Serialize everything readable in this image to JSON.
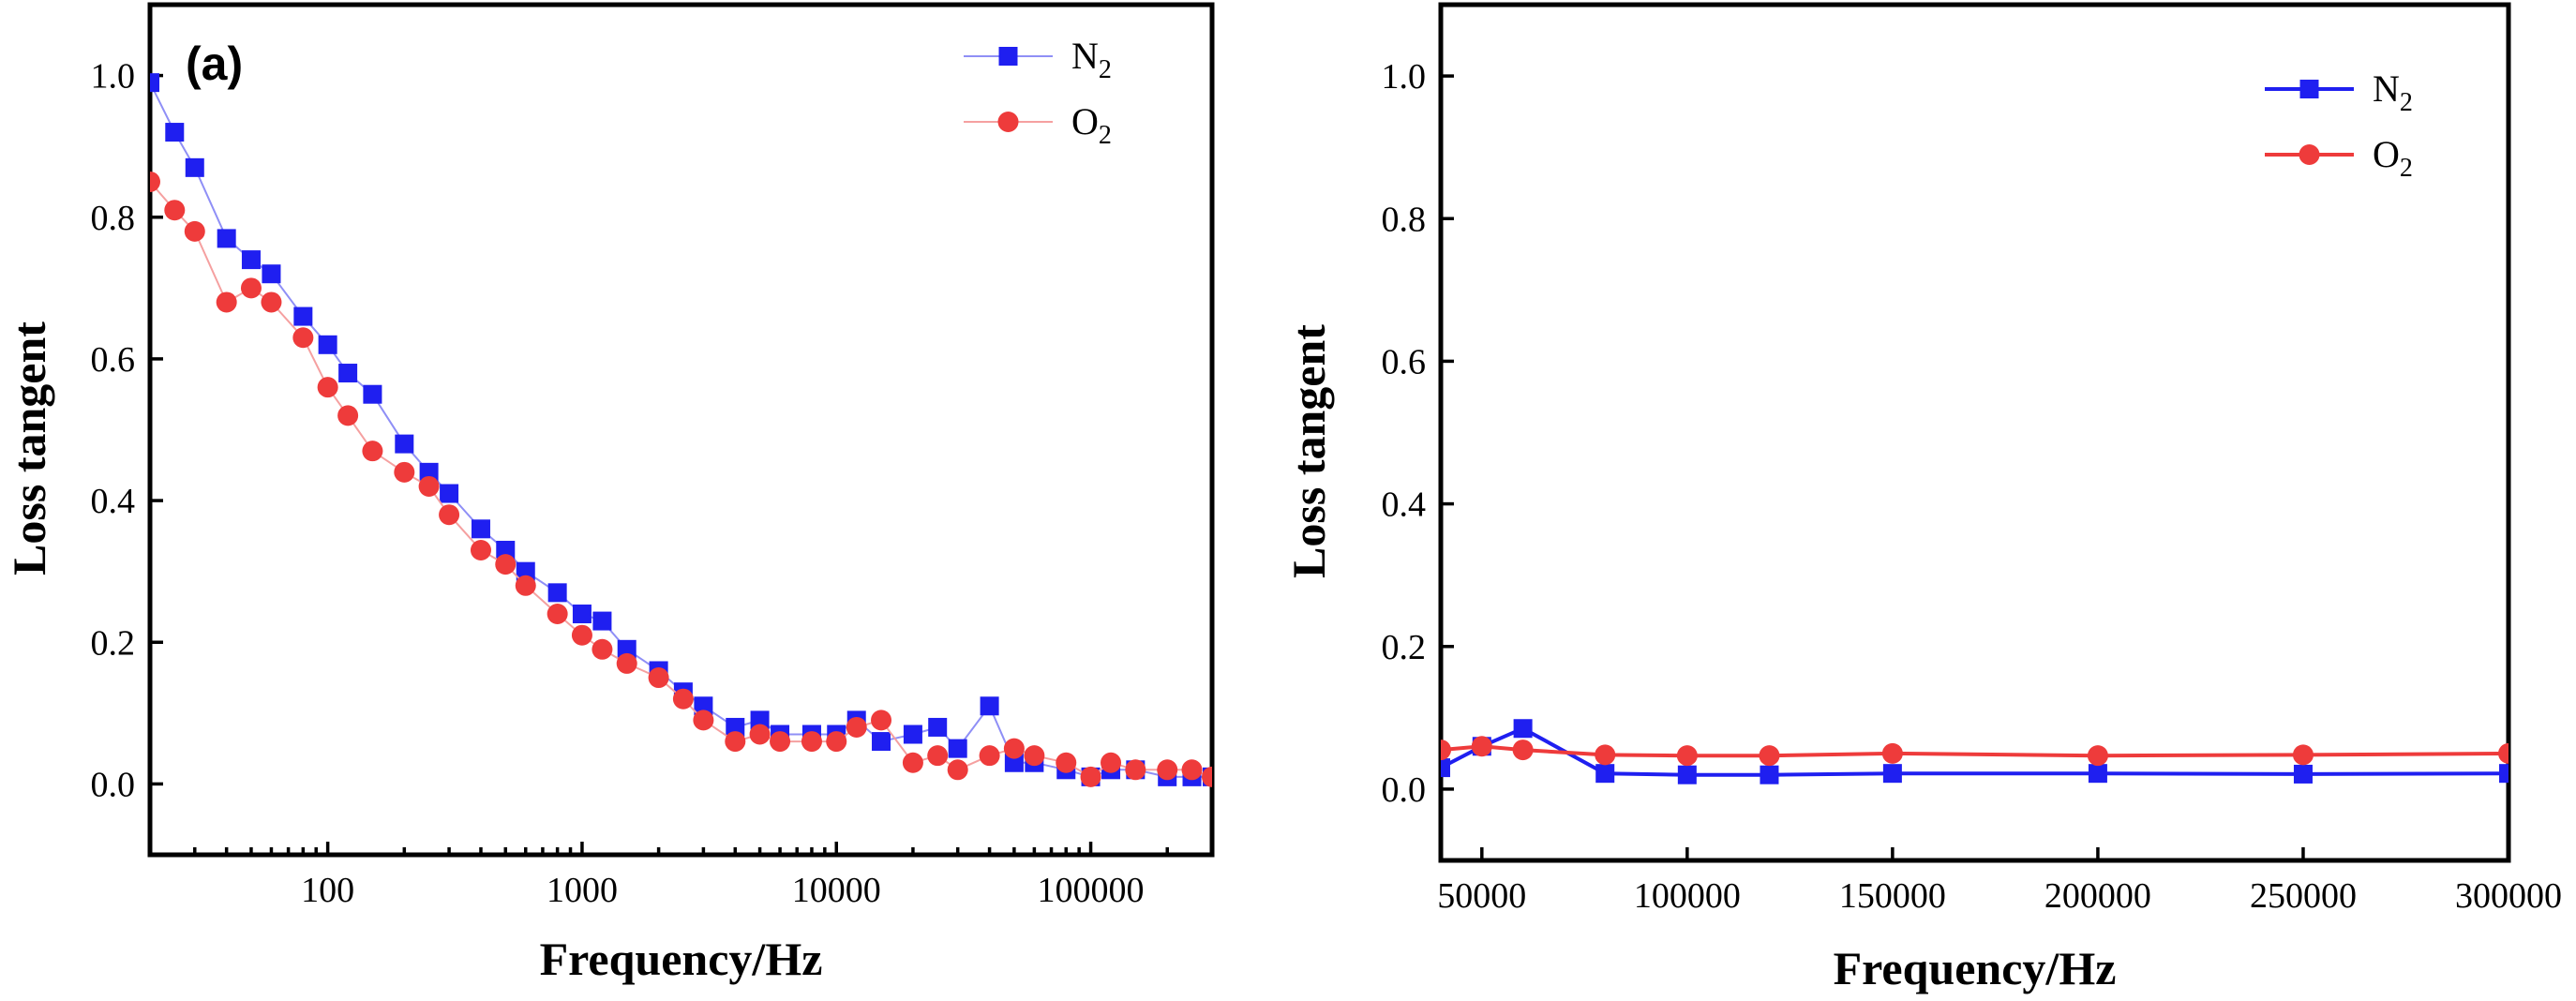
{
  "colors": {
    "n2": "#1f1ff0",
    "o2": "#ee3b3b",
    "n2_line_a": "#8f8ff6",
    "o2_line_a": "#f5a0a0"
  },
  "chart_data": [
    {
      "type": "line",
      "panel_label": "(a)",
      "xlabel": "Frequency/Hz",
      "ylabel": "Loss tangent",
      "xscale": "log",
      "xlim": [
        20,
        300000
      ],
      "ylim": [
        -0.1,
        1.1
      ],
      "x_ticks": [
        100,
        1000,
        10000,
        100000
      ],
      "x_tick_labels": [
        "100",
        "1000",
        "10000",
        "100000"
      ],
      "y_ticks": [
        0.0,
        0.2,
        0.4,
        0.6,
        0.8,
        1.0
      ],
      "y_tick_labels": [
        "0.0",
        "0.2",
        "0.4",
        "0.6",
        "0.8",
        "1.0"
      ],
      "grid": false,
      "legend_position": "top-right",
      "series": [
        {
          "name": "N2",
          "name_main": "N",
          "name_sub": "2",
          "marker": "square",
          "x": [
            20,
            25,
            30,
            40,
            50,
            60,
            80,
            100,
            120,
            150,
            200,
            250,
            300,
            400,
            500,
            600,
            800,
            1000,
            1200,
            1500,
            2000,
            2500,
            3000,
            4000,
            5000,
            6000,
            8000,
            10000,
            12000,
            15000,
            20000,
            25000,
            30000,
            40000,
            50000,
            60000,
            80000,
            100000,
            120000,
            150000,
            200000,
            250000,
            300000
          ],
          "y": [
            0.99,
            0.92,
            0.87,
            0.77,
            0.74,
            0.72,
            0.66,
            0.62,
            0.58,
            0.55,
            0.48,
            0.44,
            0.41,
            0.36,
            0.33,
            0.3,
            0.27,
            0.24,
            0.23,
            0.19,
            0.16,
            0.13,
            0.11,
            0.08,
            0.09,
            0.07,
            0.07,
            0.07,
            0.09,
            0.06,
            0.07,
            0.08,
            0.05,
            0.11,
            0.03,
            0.03,
            0.02,
            0.01,
            0.02,
            0.02,
            0.01,
            0.01,
            0.01
          ]
        },
        {
          "name": "O2",
          "name_main": "O",
          "name_sub": "2",
          "marker": "circle",
          "x": [
            20,
            25,
            30,
            40,
            50,
            60,
            80,
            100,
            120,
            150,
            200,
            250,
            300,
            400,
            500,
            600,
            800,
            1000,
            1200,
            1500,
            2000,
            2500,
            3000,
            4000,
            5000,
            6000,
            8000,
            10000,
            12000,
            15000,
            20000,
            25000,
            30000,
            40000,
            50000,
            60000,
            80000,
            100000,
            120000,
            150000,
            200000,
            250000,
            300000
          ],
          "y": [
            0.85,
            0.81,
            0.78,
            0.68,
            0.7,
            0.68,
            0.63,
            0.56,
            0.52,
            0.47,
            0.44,
            0.42,
            0.38,
            0.33,
            0.31,
            0.28,
            0.24,
            0.21,
            0.19,
            0.17,
            0.15,
            0.12,
            0.09,
            0.06,
            0.07,
            0.06,
            0.06,
            0.06,
            0.08,
            0.09,
            0.03,
            0.04,
            0.02,
            0.04,
            0.05,
            0.04,
            0.03,
            0.01,
            0.03,
            0.02,
            0.02,
            0.02,
            0.01
          ]
        }
      ]
    },
    {
      "type": "line",
      "panel_label": "",
      "xlabel": "Frequency/Hz",
      "ylabel": "Loss tangent",
      "xscale": "linear",
      "xlim": [
        40000,
        300000
      ],
      "ylim": [
        -0.1,
        1.1
      ],
      "x_ticks": [
        50000,
        100000,
        150000,
        200000,
        250000,
        300000
      ],
      "x_tick_labels": [
        "50000",
        "100000",
        "150000",
        "200000",
        "250000",
        "300000"
      ],
      "y_ticks": [
        0.0,
        0.2,
        0.4,
        0.6,
        0.8,
        1.0
      ],
      "y_tick_labels": [
        "0.0",
        "0.2",
        "0.4",
        "0.6",
        "0.8",
        "1.0"
      ],
      "grid": false,
      "legend_position": "top-right",
      "series": [
        {
          "name": "N2",
          "name_main": "N",
          "name_sub": "2",
          "marker": "square",
          "x": [
            40000,
            50000,
            60000,
            80000,
            100000,
            120000,
            150000,
            200000,
            250000,
            300000
          ],
          "y": [
            0.03,
            0.06,
            0.085,
            0.022,
            0.02,
            0.02,
            0.022,
            0.022,
            0.021,
            0.022
          ]
        },
        {
          "name": "O2",
          "name_main": "O",
          "name_sub": "2",
          "marker": "circle",
          "x": [
            40000,
            50000,
            60000,
            80000,
            100000,
            120000,
            150000,
            200000,
            250000,
            300000
          ],
          "y": [
            0.055,
            0.06,
            0.055,
            0.048,
            0.047,
            0.047,
            0.05,
            0.047,
            0.048,
            0.05
          ]
        }
      ]
    }
  ]
}
